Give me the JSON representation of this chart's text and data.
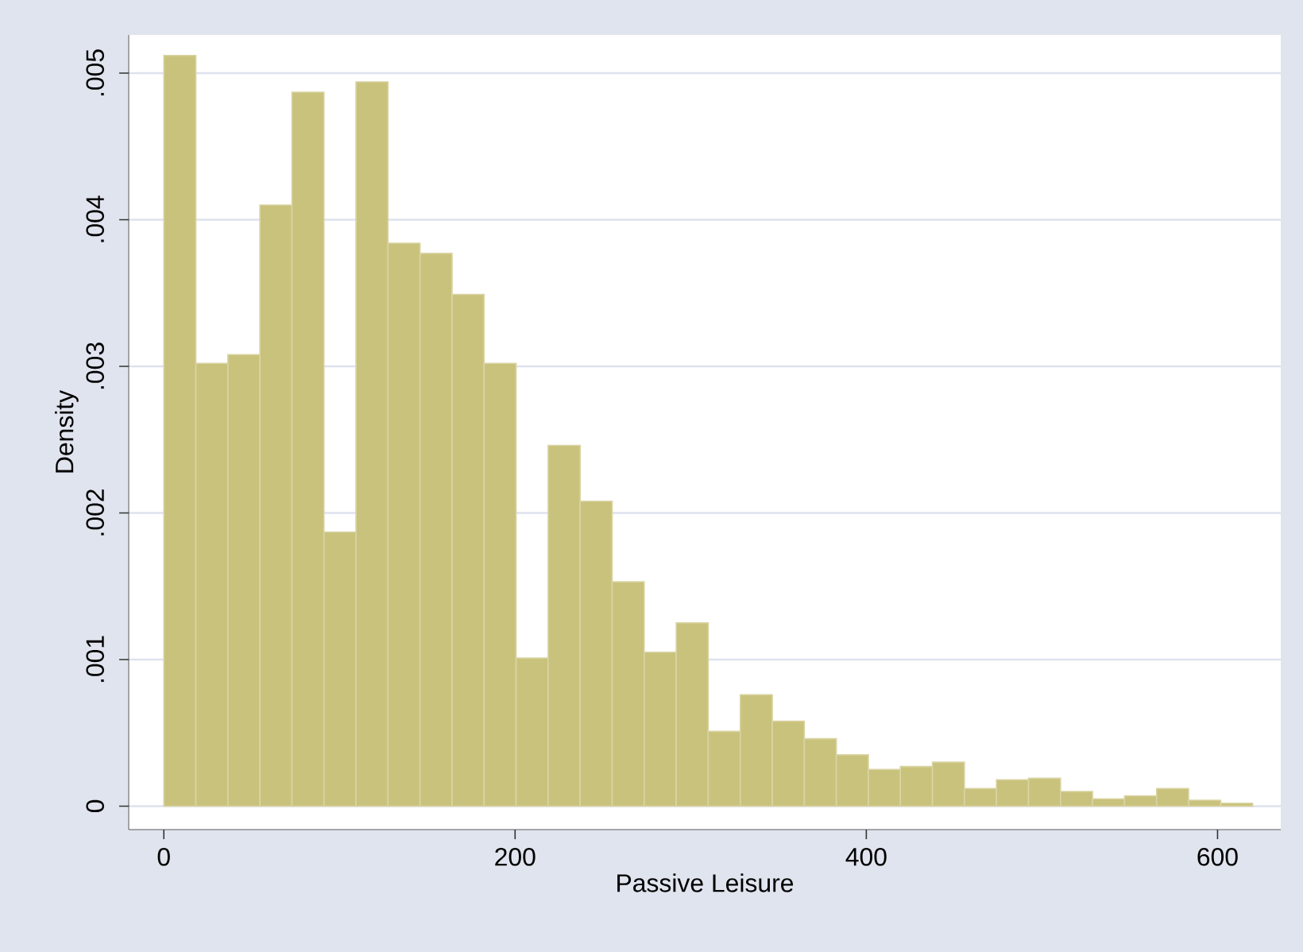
{
  "chart_data": {
    "type": "histogram",
    "xlabel": "Passive Leisure",
    "ylabel": "Density",
    "bins": [
      0,
      18.24,
      36.47,
      54.71,
      72.94,
      91.18,
      109.41,
      127.65,
      145.88,
      164.12,
      182.35,
      200.59,
      218.82,
      237.06,
      255.29,
      273.53,
      291.76,
      310,
      328.24,
      346.47,
      364.71,
      382.94,
      401.18,
      419.41,
      437.65,
      455.88,
      474.12,
      492.35,
      510.59,
      528.82,
      547.06,
      565.29,
      583.53,
      601.76,
      620
    ],
    "values": [
      0.00512,
      0.00302,
      0.00308,
      0.0041,
      0.00487,
      0.00187,
      0.00494,
      0.00384,
      0.00377,
      0.00349,
      0.00302,
      0.00101,
      0.00246,
      0.00208,
      0.00153,
      0.00105,
      0.00125,
      0.00051,
      0.00076,
      0.00058,
      0.00046,
      0.00035,
      0.00025,
      0.00027,
      0.0003,
      0.00012,
      0.00018,
      0.00019,
      0.0001,
      5e-05,
      7e-05,
      0.00012,
      4e-05,
      2e-05
    ],
    "color": "#c9c27c",
    "xlim": [
      -20,
      636
    ],
    "ylim": [
      -0.00016,
      0.00526
    ],
    "xticks": [
      0,
      200,
      400,
      600
    ],
    "yticks": [
      0,
      {
        "value": 0.001,
        "label": ".001"
      },
      {
        "value": 0.002,
        "label": ".002"
      },
      {
        "value": 0.003,
        "label": ".003"
      },
      {
        "value": 0.004,
        "label": ".004"
      },
      {
        "value": 0.005,
        "label": ".005"
      }
    ],
    "grid": "y"
  }
}
